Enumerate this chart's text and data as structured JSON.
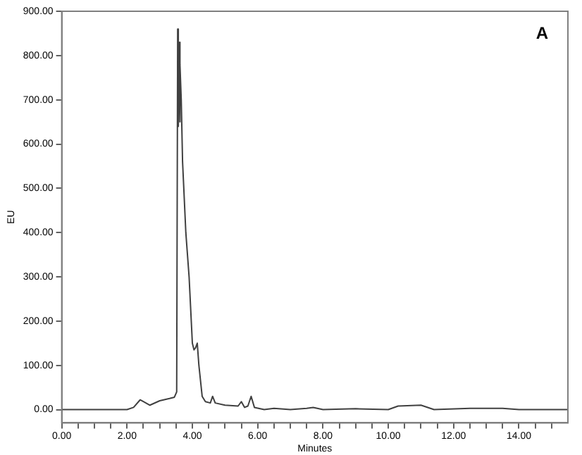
{
  "chart_data": {
    "type": "line",
    "xlabel": "Minutes",
    "ylabel": "EU",
    "annotations": [
      "A"
    ],
    "marker": "none",
    "grid": false,
    "legend": false,
    "x": [
      0,
      2.0,
      2.2,
      2.4,
      2.5,
      2.7,
      3.0,
      3.3,
      3.45,
      3.52,
      3.55,
      3.57,
      3.59,
      3.61,
      3.63,
      3.66,
      3.7,
      3.8,
      3.9,
      4.0,
      4.05,
      4.1,
      4.15,
      4.2,
      4.3,
      4.4,
      4.55,
      4.62,
      4.7,
      5.0,
      5.4,
      5.5,
      5.6,
      5.7,
      5.8,
      5.9,
      6.2,
      6.5,
      7.0,
      7.5,
      7.7,
      8.0,
      9.0,
      10.0,
      10.3,
      11.0,
      11.4,
      12.5,
      13.5,
      14.0,
      15.5
    ],
    "series": [
      {
        "color": "#404040",
        "values": [
          0,
          0,
          5,
          22,
          18,
          10,
          20,
          25,
          28,
          40,
          860,
          640,
          830,
          650,
          780,
          700,
          560,
          400,
          300,
          150,
          135,
          140,
          150,
          100,
          30,
          18,
          15,
          30,
          15,
          10,
          8,
          18,
          5,
          8,
          30,
          5,
          0,
          3,
          0,
          3,
          5,
          0,
          2,
          0,
          8,
          10,
          0,
          3,
          3,
          0,
          0
        ]
      }
    ],
    "xlim": [
      0,
      15.5
    ],
    "ylim": [
      -30,
      900
    ],
    "xticks": [
      {
        "value": 0,
        "label": "0.00"
      },
      {
        "value": 0.5,
        "label": null
      },
      {
        "value": 1,
        "label": null
      },
      {
        "value": 1.5,
        "label": null
      },
      {
        "value": 2,
        "label": "2.00"
      },
      {
        "value": 2.5,
        "label": null
      },
      {
        "value": 3,
        "label": null
      },
      {
        "value": 3.5,
        "label": null
      },
      {
        "value": 4,
        "label": "4.00"
      },
      {
        "value": 4.5,
        "label": null
      },
      {
        "value": 5,
        "label": null
      },
      {
        "value": 5.5,
        "label": null
      },
      {
        "value": 6,
        "label": "6.00"
      },
      {
        "value": 6.5,
        "label": null
      },
      {
        "value": 7,
        "label": null
      },
      {
        "value": 7.5,
        "label": null
      },
      {
        "value": 8,
        "label": "8.00"
      },
      {
        "value": 8.5,
        "label": null
      },
      {
        "value": 9,
        "label": null
      },
      {
        "value": 9.5,
        "label": null
      },
      {
        "value": 10,
        "label": "10.00"
      },
      {
        "value": 10.5,
        "label": null
      },
      {
        "value": 11,
        "label": null
      },
      {
        "value": 11.5,
        "label": null
      },
      {
        "value": 12,
        "label": "12.00"
      },
      {
        "value": 12.5,
        "label": null
      },
      {
        "value": 13,
        "label": null
      },
      {
        "value": 13.5,
        "label": null
      },
      {
        "value": 14,
        "label": "14.00"
      },
      {
        "value": 14.5,
        "label": null
      },
      {
        "value": 15,
        "label": null
      }
    ],
    "yticks": [
      {
        "value": 0,
        "label": "0.00"
      },
      {
        "value": 100,
        "label": "100.00"
      },
      {
        "value": 200,
        "label": "200.00"
      },
      {
        "value": 300,
        "label": "300.00"
      },
      {
        "value": 400,
        "label": "400.00"
      },
      {
        "value": 500,
        "label": "500.00"
      },
      {
        "value": 600,
        "label": "600.00"
      },
      {
        "value": 700,
        "label": "700.00"
      },
      {
        "value": 800,
        "label": "800.00"
      },
      {
        "value": 900,
        "label": "900.00"
      }
    ]
  }
}
